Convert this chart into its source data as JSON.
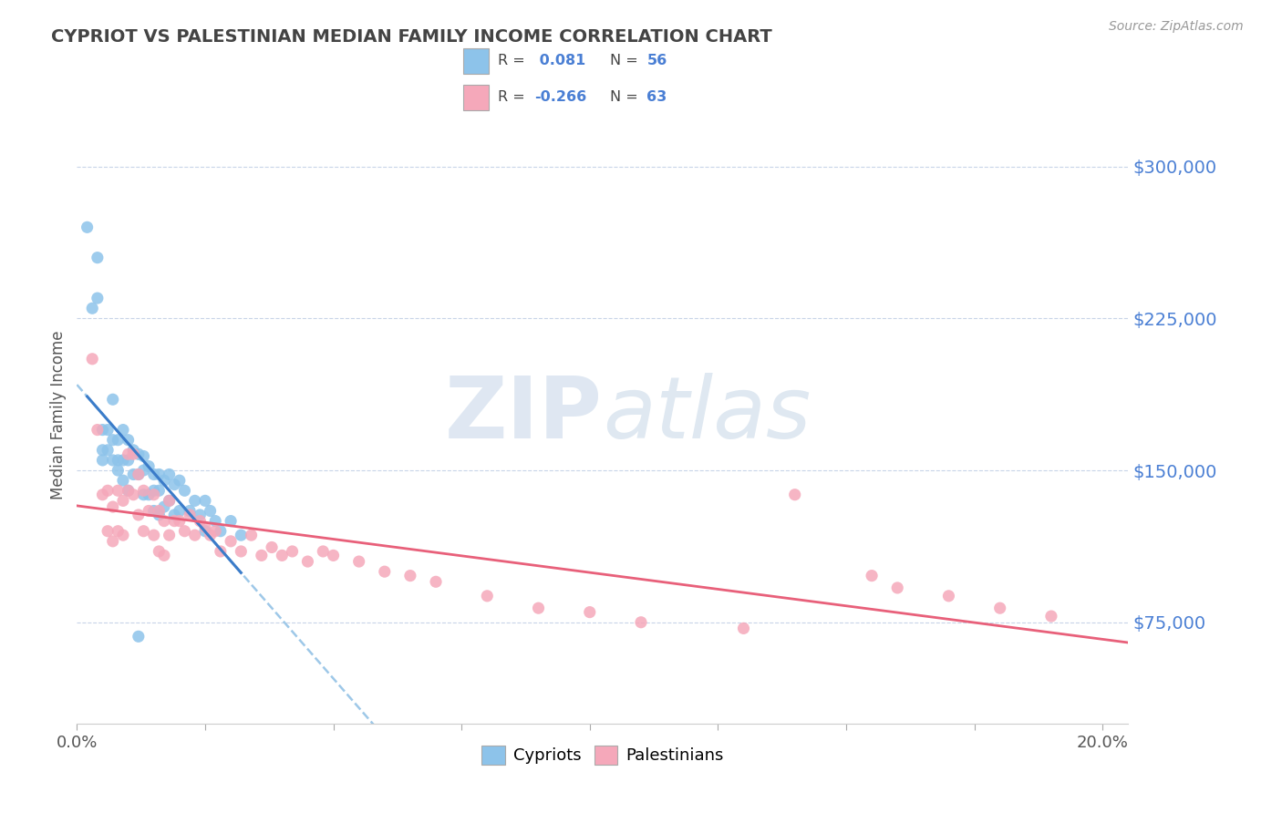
{
  "title": "CYPRIOT VS PALESTINIAN MEDIAN FAMILY INCOME CORRELATION CHART",
  "source": "Source: ZipAtlas.com",
  "ylabel": "Median Family Income",
  "xlim": [
    0.0,
    0.205
  ],
  "ylim": [
    25000,
    330000
  ],
  "yticks": [
    75000,
    150000,
    225000,
    300000
  ],
  "ytick_labels": [
    "$75,000",
    "$150,000",
    "$225,000",
    "$300,000"
  ],
  "xtick_positions": [
    0.0,
    0.025,
    0.05,
    0.075,
    0.1,
    0.125,
    0.15,
    0.175,
    0.2
  ],
  "xtick_label_positions": [
    0.0,
    0.2
  ],
  "xtick_display_labels": [
    "0.0%",
    "20.0%"
  ],
  "cypriot_color": "#8DC3EA",
  "palestinian_color": "#F5A8BA",
  "cypriot_line_color": "#3B7CC9",
  "cypriot_line_dash_color": "#9EC8E8",
  "palestinian_line_color": "#E8607A",
  "R_cypriot": 0.081,
  "N_cypriot": 56,
  "R_palestinian": -0.266,
  "N_palestinian": 63,
  "legend_labels": [
    "Cypriots",
    "Palestinians"
  ],
  "watermark_zip": "ZIP",
  "watermark_atlas": "atlas",
  "background_color": "#ffffff",
  "grid_color": "#c8d4e8",
  "ytick_label_color": "#4A7FD4",
  "title_color": "#444444",
  "source_color": "#999999",
  "cypriot_scatter_x": [
    0.002,
    0.003,
    0.004,
    0.004,
    0.005,
    0.005,
    0.005,
    0.006,
    0.006,
    0.007,
    0.007,
    0.007,
    0.008,
    0.008,
    0.008,
    0.009,
    0.009,
    0.009,
    0.01,
    0.01,
    0.01,
    0.011,
    0.011,
    0.012,
    0.012,
    0.013,
    0.013,
    0.013,
    0.014,
    0.014,
    0.015,
    0.015,
    0.015,
    0.016,
    0.016,
    0.016,
    0.017,
    0.017,
    0.018,
    0.018,
    0.019,
    0.019,
    0.02,
    0.02,
    0.021,
    0.022,
    0.023,
    0.024,
    0.025,
    0.025,
    0.026,
    0.027,
    0.028,
    0.03,
    0.032,
    0.012
  ],
  "cypriot_scatter_y": [
    270000,
    230000,
    255000,
    235000,
    170000,
    160000,
    155000,
    170000,
    160000,
    185000,
    165000,
    155000,
    165000,
    155000,
    150000,
    170000,
    155000,
    145000,
    165000,
    155000,
    140000,
    160000,
    148000,
    158000,
    148000,
    157000,
    150000,
    138000,
    152000,
    138000,
    148000,
    140000,
    130000,
    148000,
    140000,
    128000,
    145000,
    132000,
    148000,
    135000,
    143000,
    128000,
    145000,
    130000,
    140000,
    130000,
    135000,
    128000,
    135000,
    120000,
    130000,
    125000,
    120000,
    125000,
    118000,
    68000
  ],
  "palestinian_scatter_x": [
    0.003,
    0.004,
    0.005,
    0.006,
    0.006,
    0.007,
    0.007,
    0.008,
    0.008,
    0.009,
    0.009,
    0.01,
    0.01,
    0.011,
    0.011,
    0.012,
    0.012,
    0.013,
    0.013,
    0.014,
    0.015,
    0.015,
    0.016,
    0.016,
    0.017,
    0.017,
    0.018,
    0.018,
    0.019,
    0.02,
    0.021,
    0.022,
    0.023,
    0.024,
    0.025,
    0.026,
    0.027,
    0.028,
    0.03,
    0.032,
    0.034,
    0.036,
    0.038,
    0.04,
    0.042,
    0.045,
    0.048,
    0.05,
    0.055,
    0.06,
    0.065,
    0.07,
    0.08,
    0.09,
    0.1,
    0.11,
    0.13,
    0.14,
    0.155,
    0.16,
    0.17,
    0.18,
    0.19
  ],
  "palestinian_scatter_y": [
    205000,
    170000,
    138000,
    140000,
    120000,
    132000,
    115000,
    140000,
    120000,
    135000,
    118000,
    158000,
    140000,
    158000,
    138000,
    148000,
    128000,
    140000,
    120000,
    130000,
    138000,
    118000,
    130000,
    110000,
    125000,
    108000,
    135000,
    118000,
    125000,
    125000,
    120000,
    128000,
    118000,
    125000,
    122000,
    118000,
    120000,
    110000,
    115000,
    110000,
    118000,
    108000,
    112000,
    108000,
    110000,
    105000,
    110000,
    108000,
    105000,
    100000,
    98000,
    95000,
    88000,
    82000,
    80000,
    75000,
    72000,
    138000,
    98000,
    92000,
    88000,
    82000,
    78000
  ]
}
